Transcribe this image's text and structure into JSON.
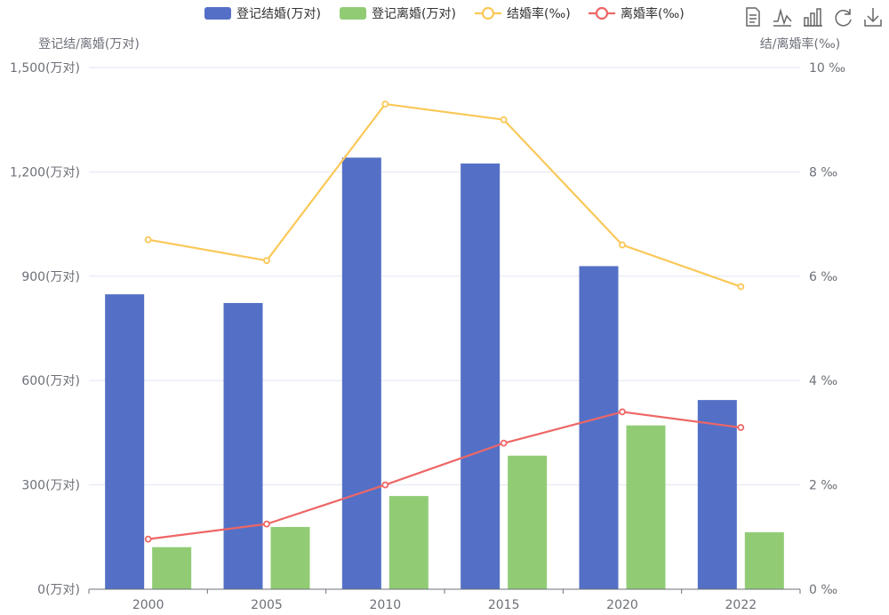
{
  "chart_data": {
    "type": "bar",
    "categories": [
      "2000",
      "2005",
      "2010",
      "2015",
      "2020",
      "2022"
    ],
    "series": [
      {
        "name": "登记结婚(万对)",
        "type": "bar",
        "axis": "left",
        "color": "#5470c6",
        "values": [
          848,
          823,
          1241,
          1224,
          929,
          544
        ]
      },
      {
        "name": "登记离婚(万对)",
        "type": "bar",
        "axis": "left",
        "color": "#91cc75",
        "values": [
          121,
          179,
          268,
          384,
          471,
          164
        ]
      },
      {
        "name": "结婚率(‰)",
        "type": "line",
        "axis": "right",
        "color": "#fac858",
        "values": [
          6.7,
          6.3,
          9.3,
          9.0,
          6.6,
          5.8
        ]
      },
      {
        "name": "离婚率(‰)",
        "type": "line",
        "axis": "right",
        "color": "#ee6666",
        "values": [
          0.96,
          1.25,
          2.0,
          2.8,
          3.4,
          3.1
        ]
      }
    ],
    "y_left": {
      "name": "登记结/离婚(万对)",
      "ylim": [
        0,
        1500
      ],
      "ticks": [
        0,
        300,
        600,
        900,
        1200,
        1500
      ],
      "tick_labels": [
        "0(万对)",
        "300(万对)",
        "600(万对)",
        "900(万对)",
        "1,200(万对)",
        "1,500(万对)"
      ]
    },
    "y_right": {
      "name": "结/离婚率(‰)",
      "ylim": [
        0,
        10
      ],
      "ticks": [
        0,
        2,
        4,
        6,
        8,
        10
      ],
      "tick_labels": [
        "0 ‰",
        "2 ‰",
        "4 ‰",
        "6 ‰",
        "8 ‰",
        "10 ‰"
      ]
    },
    "grid": true,
    "legend_position": "top-center"
  },
  "toolbox": {
    "icons": [
      "data-view-icon",
      "line-chart-icon",
      "bar-chart-icon",
      "restore-icon",
      "download-icon"
    ]
  }
}
